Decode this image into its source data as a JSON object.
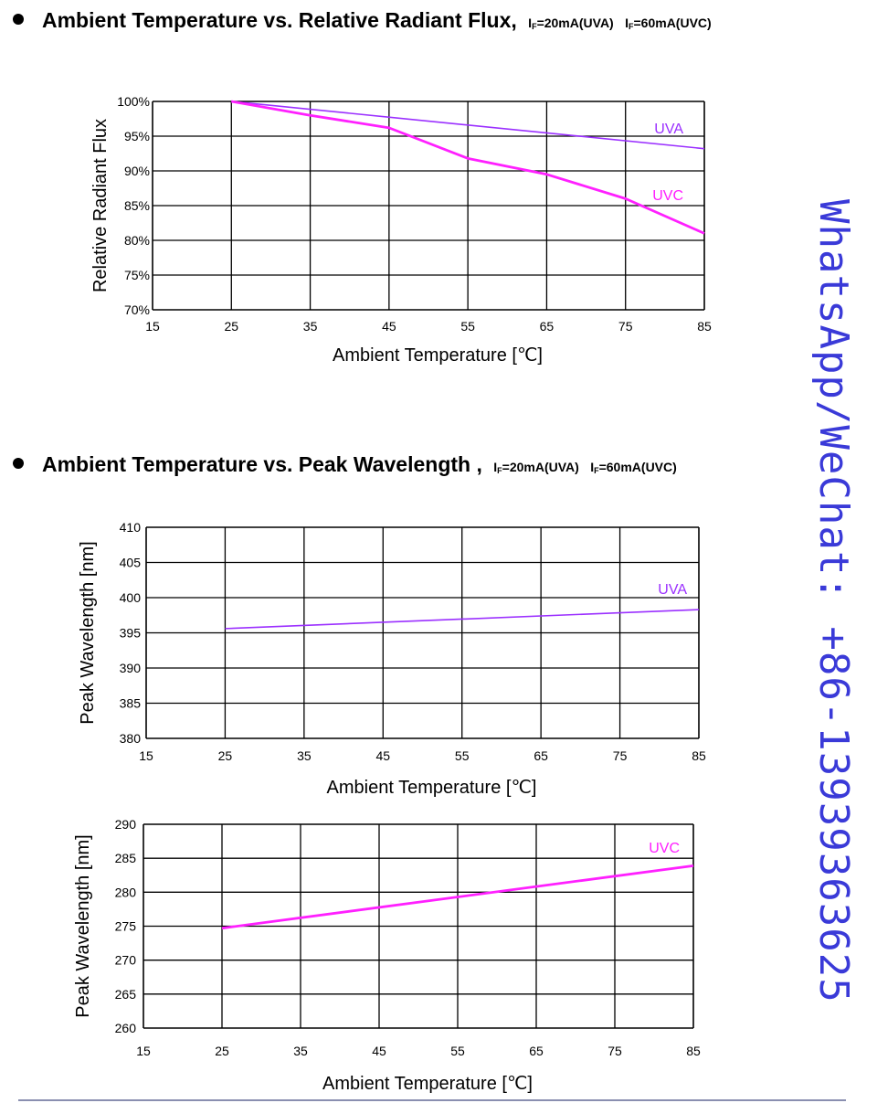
{
  "headings": [
    {
      "title": "Ambient Temperature vs. Relative Radiant Flux,",
      "cond1_pre": "I",
      "cond1_sub": "F",
      "cond1_post": "=20mA(UVA)",
      "cond2_pre": "I",
      "cond2_sub": "F",
      "cond2_post": "=60mA(UVC)"
    },
    {
      "title": "Ambient Temperature vs. Peak Wavelength ,",
      "cond1_pre": "I",
      "cond1_sub": "F",
      "cond1_post": "=20mA(UVA)",
      "cond2_pre": "I",
      "cond2_sub": "F",
      "cond2_post": "=60mA(UVC)"
    }
  ],
  "watermark": "WhatsApp/WeChat: +86-13939363625",
  "colors": {
    "uva": "#9b30ff",
    "uvc": "#ff20ff",
    "grid": "#000000"
  },
  "chart_data": [
    {
      "type": "line",
      "xlabel": "Ambient Temperature [℃]",
      "ylabel": "Relative Radiant Flux",
      "xlim": [
        15,
        85
      ],
      "ylim": [
        70,
        100
      ],
      "xticks": [
        15,
        25,
        35,
        45,
        55,
        65,
        75,
        85
      ],
      "xtick_labels": [
        "15",
        "25",
        "35",
        "45",
        "55",
        "65",
        "75",
        "85"
      ],
      "yticks": [
        70,
        75,
        80,
        85,
        90,
        95,
        100
      ],
      "ytick_labels": [
        "70%",
        "75%",
        "80%",
        "85%",
        "90%",
        "95%",
        "100%"
      ],
      "grid": true,
      "series": [
        {
          "name": "UVA",
          "x": [
            25,
            85
          ],
          "y": [
            100,
            93.2
          ]
        },
        {
          "name": "UVC",
          "x": [
            25,
            35,
            45,
            55,
            65,
            75,
            85
          ],
          "y": [
            100,
            98,
            96.2,
            91.8,
            89.5,
            86.0,
            81.0
          ]
        }
      ]
    },
    {
      "type": "line",
      "xlabel": "Ambient Temperature [℃]",
      "ylabel": "Peak Wavelength [nm]",
      "xlim": [
        15,
        85
      ],
      "ylim": [
        380,
        410
      ],
      "xticks": [
        15,
        25,
        35,
        45,
        55,
        65,
        75,
        85
      ],
      "xtick_labels": [
        "15",
        "25",
        "35",
        "45",
        "55",
        "65",
        "75",
        "85"
      ],
      "yticks": [
        380,
        385,
        390,
        395,
        400,
        405,
        410
      ],
      "ytick_labels": [
        "380",
        "385",
        "390",
        "395",
        "400",
        "405",
        "410"
      ],
      "grid": true,
      "series": [
        {
          "name": "UVA",
          "x": [
            25,
            85
          ],
          "y": [
            395.6,
            398.3
          ]
        }
      ]
    },
    {
      "type": "line",
      "xlabel": "Ambient Temperature [℃]",
      "ylabel": "Peak Wavelength [nm]",
      "xlim": [
        15,
        85
      ],
      "ylim": [
        260,
        290
      ],
      "xticks": [
        15,
        25,
        35,
        45,
        55,
        65,
        75,
        85
      ],
      "xtick_labels": [
        "15",
        "25",
        "35",
        "45",
        "55",
        "65",
        "75",
        "85"
      ],
      "yticks": [
        260,
        265,
        270,
        275,
        280,
        285,
        290
      ],
      "ytick_labels": [
        "260",
        "265",
        "270",
        "275",
        "280",
        "285",
        "290"
      ],
      "grid": true,
      "series": [
        {
          "name": "UVC",
          "x": [
            25,
            85
          ],
          "y": [
            274.7,
            283.9
          ]
        }
      ]
    }
  ]
}
